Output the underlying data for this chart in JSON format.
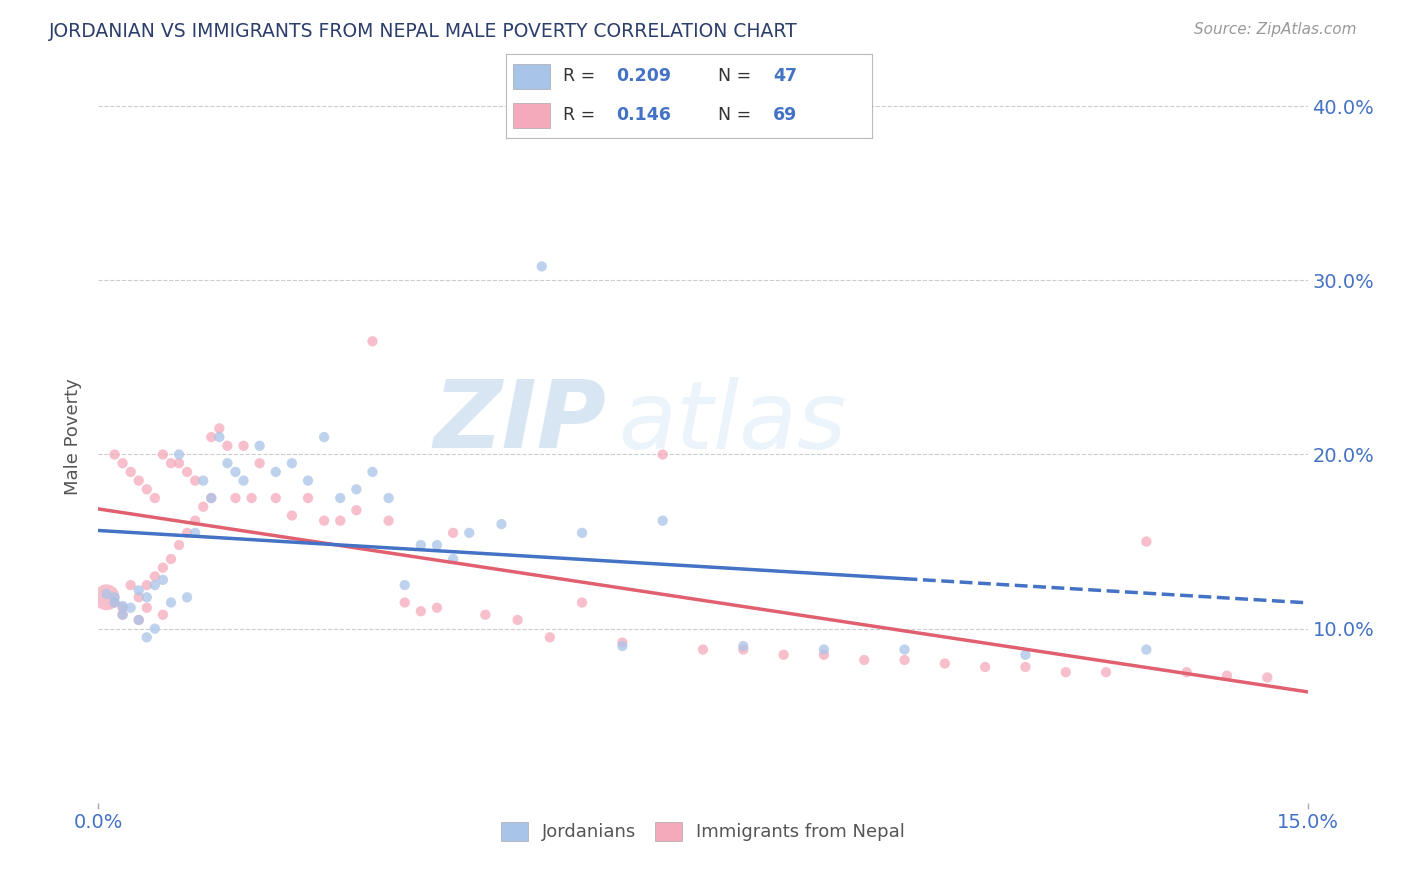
{
  "title": "JORDANIAN VS IMMIGRANTS FROM NEPAL MALE POVERTY CORRELATION CHART",
  "source": "Source: ZipAtlas.com",
  "ylabel": "Male Poverty",
  "xlim": [
    0.0,
    0.15
  ],
  "ylim": [
    0.0,
    0.42
  ],
  "blue_color": "#A8C4E8",
  "pink_color": "#F5AABB",
  "trend_blue": "#4472C4",
  "trend_pink": "#E06070",
  "watermark_zip": "ZIP",
  "watermark_atlas": "atlas",
  "legend_r_blue": "0.209",
  "legend_n_blue": "47",
  "legend_r_pink": "0.146",
  "legend_n_pink": "69"
}
